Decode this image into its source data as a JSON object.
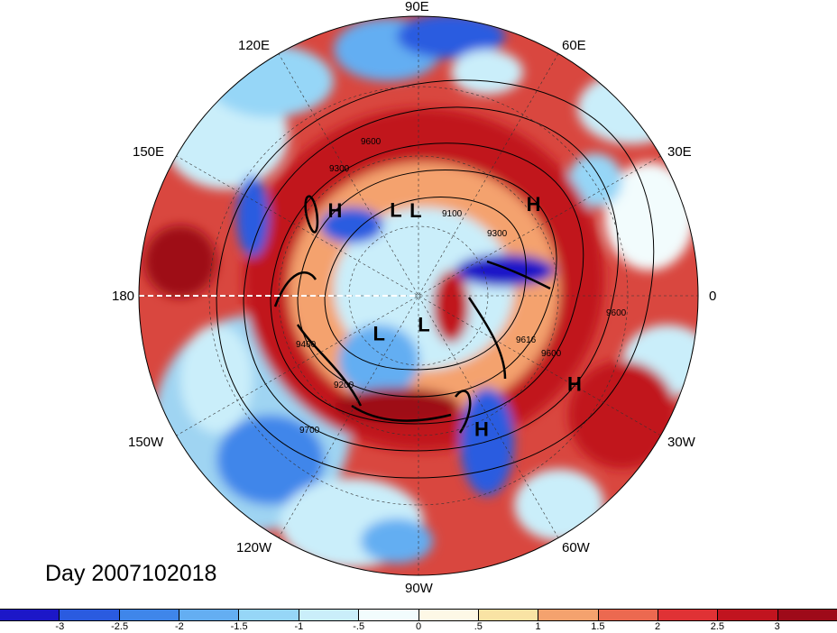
{
  "title": "Day 2007102018",
  "longitude_labels": [
    {
      "id": "90e",
      "text": "90E"
    },
    {
      "id": "60e",
      "text": "60E"
    },
    {
      "id": "30e",
      "text": "30E"
    },
    {
      "id": "0",
      "text": "0"
    },
    {
      "id": "30w",
      "text": "30W"
    },
    {
      "id": "60w",
      "text": "60W"
    },
    {
      "id": "90w",
      "text": "90W"
    },
    {
      "id": "120w",
      "text": "120W"
    },
    {
      "id": "150w",
      "text": "150W"
    },
    {
      "id": "180",
      "text": "180"
    },
    {
      "id": "150e",
      "text": "150E"
    },
    {
      "id": "120e",
      "text": "120E"
    }
  ],
  "pressure_centers": [
    {
      "type": "H",
      "lon": 135,
      "lat": 52
    },
    {
      "type": "L",
      "lon": 105,
      "lat": 62
    },
    {
      "type": "L",
      "lon": 92,
      "lat": 63
    },
    {
      "type": "H",
      "lon": 38,
      "lat": 43
    },
    {
      "type": "L",
      "lon": 225,
      "lat": 72
    },
    {
      "type": "L",
      "lon": 280,
      "lat": 80
    },
    {
      "type": "H",
      "lon": 295,
      "lat": 42
    },
    {
      "type": "H",
      "lon": 330,
      "lat": 32
    }
  ],
  "contour_labels": [
    "9600",
    "9300",
    "9100",
    "9300",
    "9600",
    "9400",
    "9200",
    "9700",
    "9616",
    "9600"
  ],
  "colorbar": {
    "colors": [
      "#1c17c8",
      "#2a5be0",
      "#3f86ea",
      "#64aef2",
      "#96d6f7",
      "#caeefa",
      "#f2fcfd",
      "#fdf8e6",
      "#f9e3a4",
      "#f4a26e",
      "#ec6950",
      "#e03235",
      "#c1141f",
      "#9e0a19"
    ],
    "labels": [
      "-3",
      "-2.5",
      "-2",
      "-1.5",
      "-1",
      "-.5",
      "0",
      ".5",
      "1",
      "1.5",
      "2",
      "2.5",
      "3"
    ]
  }
}
